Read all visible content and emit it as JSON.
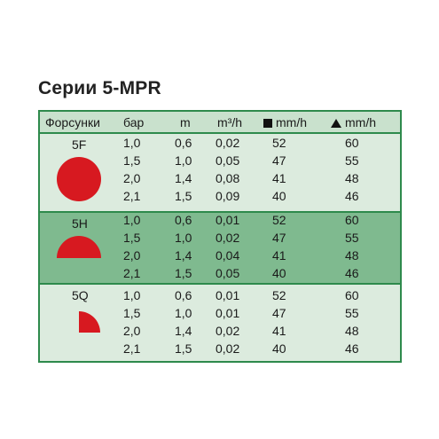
{
  "title": "Серии 5-MPR",
  "headers": {
    "nozzle": "Форсунки",
    "bar": "бар",
    "m": "m",
    "flow": "m³/h",
    "square_rate": "mm/h",
    "triangle_rate": "mm/h"
  },
  "groups": [
    {
      "name": "5F",
      "shape": "full-circle-icon",
      "rows": [
        [
          "1,0",
          "0,6",
          "0,02",
          "52",
          "60"
        ],
        [
          "1,5",
          "1,0",
          "0,05",
          "47",
          "55"
        ],
        [
          "2,0",
          "1,4",
          "0,08",
          "41",
          "48"
        ],
        [
          "2,1",
          "1,5",
          "0,09",
          "40",
          "46"
        ]
      ]
    },
    {
      "name": "5H",
      "shape": "half-circle-icon",
      "rows": [
        [
          "1,0",
          "0,6",
          "0,01",
          "52",
          "60"
        ],
        [
          "1,5",
          "1,0",
          "0,02",
          "47",
          "55"
        ],
        [
          "2,0",
          "1,4",
          "0,04",
          "41",
          "48"
        ],
        [
          "2,1",
          "1,5",
          "0,05",
          "40",
          "46"
        ]
      ]
    },
    {
      "name": "5Q",
      "shape": "quarter-circle-icon",
      "rows": [
        [
          "1,0",
          "0,6",
          "0,01",
          "52",
          "60"
        ],
        [
          "1,5",
          "1,0",
          "0,01",
          "47",
          "55"
        ],
        [
          "2,0",
          "1,4",
          "0,02",
          "41",
          "48"
        ],
        [
          "2,1",
          "1,5",
          "0,02",
          "40",
          "46"
        ]
      ]
    }
  ],
  "colors": {
    "border": "#2e8a4c",
    "header_bg": "#c9e1cd",
    "light_band": "#dcebde",
    "dark_band": "#7fba8f",
    "nozzle_red": "#d71920"
  }
}
